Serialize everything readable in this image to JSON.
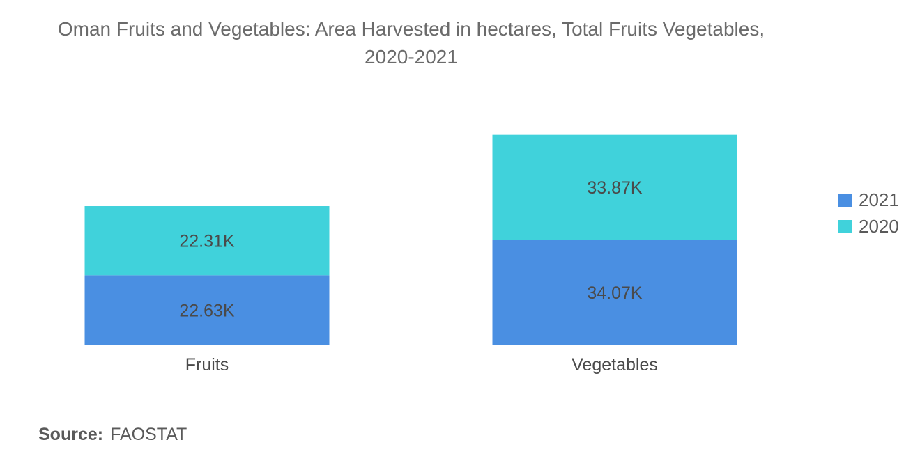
{
  "chart_data": {
    "type": "bar",
    "stacked": true,
    "title": "Oman Fruits and Vegetables: Area Harvested in hectares, Total Fruits Vegetables,",
    "subtitle": "2020-2021",
    "categories": [
      "Fruits",
      "Vegetables"
    ],
    "series": [
      {
        "name": "2021",
        "values": [
          22.63,
          34.07
        ],
        "labels": [
          "22.63K",
          "34.07K"
        ],
        "color": "#4a8fe2"
      },
      {
        "name": "2020",
        "values": [
          22.31,
          33.87
        ],
        "labels": [
          "22.31K",
          "33.87K"
        ],
        "color": "#40d2db"
      }
    ],
    "unit": "K",
    "xlabel": "",
    "ylabel": "",
    "ylim": [
      0,
      75
    ],
    "grid": false,
    "legend_position": "right"
  },
  "source": {
    "label": "Source:",
    "value": "FAOSTAT"
  }
}
